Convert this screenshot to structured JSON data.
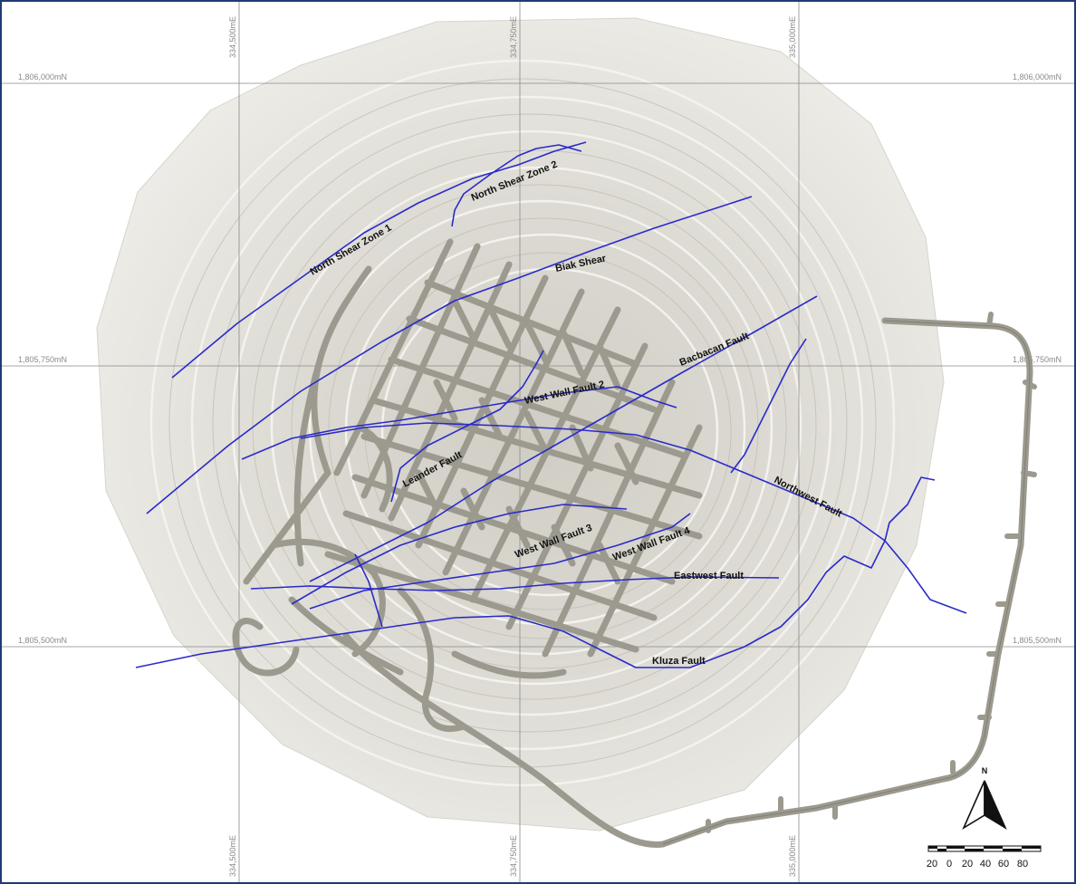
{
  "map": {
    "grid": {
      "northings": [
        "1,806,000mN",
        "1,805,750mN",
        "1,805,500mN"
      ],
      "eastings_top": [
        "334,500mE",
        "334,750mE",
        "335,000mE"
      ],
      "eastings_bottom": [
        "334,500mE",
        "334,750mE",
        "335,000mE"
      ]
    },
    "faults": [
      {
        "id": "north-shear-zone-1",
        "label": "North Shear Zone 1"
      },
      {
        "id": "north-shear-zone-2",
        "label": "North Shear Zone 2"
      },
      {
        "id": "biak-shear",
        "label": "Biak Shear"
      },
      {
        "id": "bacbacan-fault",
        "label": "Bacbacan Fault"
      },
      {
        "id": "west-wall-fault-2",
        "label": "West Wall Fault 2"
      },
      {
        "id": "leander-fault",
        "label": "Leander Fault"
      },
      {
        "id": "northwest-fault",
        "label": "Northwest Fault"
      },
      {
        "id": "west-wall-fault-3",
        "label": "West Wall Fault 3"
      },
      {
        "id": "west-wall-fault-4",
        "label": "West Wall Fault 4"
      },
      {
        "id": "eastwest-fault",
        "label": "Eastwest Fault"
      },
      {
        "id": "kluza-fault",
        "label": "Kluza Fault"
      }
    ],
    "north_arrow": {
      "label": "N"
    },
    "scale_bar": {
      "ticks": [
        "20",
        "0",
        "20",
        "40",
        "60",
        "80"
      ]
    },
    "colors": {
      "fault_line": "#2a2acb",
      "tunnel": "#9c9a8e",
      "pit_surface": "#e2e0d8",
      "grid_line": "#8a8a8a",
      "border": "#1f3a73"
    }
  }
}
